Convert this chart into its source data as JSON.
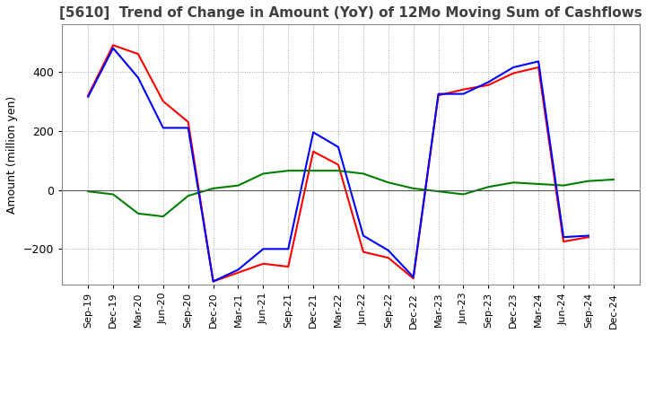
{
  "title": "[5610]  Trend of Change in Amount (YoY) of 12Mo Moving Sum of Cashflows",
  "ylabel": "Amount (million yen)",
  "x_labels": [
    "Sep-19",
    "Dec-19",
    "Mar-20",
    "Jun-20",
    "Sep-20",
    "Dec-20",
    "Mar-21",
    "Jun-21",
    "Sep-21",
    "Dec-21",
    "Mar-22",
    "Jun-22",
    "Sep-22",
    "Dec-22",
    "Mar-23",
    "Jun-23",
    "Sep-23",
    "Dec-23",
    "Mar-24",
    "Jun-24",
    "Sep-24",
    "Dec-24"
  ],
  "operating": [
    320,
    490,
    460,
    300,
    230,
    -310,
    -280,
    -250,
    -260,
    130,
    85,
    -210,
    -230,
    -300,
    320,
    340,
    355,
    395,
    415,
    -175,
    -160,
    null
  ],
  "investing": [
    -5,
    -15,
    -80,
    -90,
    -20,
    5,
    15,
    55,
    65,
    65,
    65,
    55,
    25,
    5,
    -5,
    -15,
    10,
    25,
    20,
    15,
    30,
    35
  ],
  "free": [
    315,
    480,
    380,
    210,
    210,
    -310,
    -270,
    -200,
    -200,
    195,
    145,
    -155,
    -205,
    -295,
    325,
    325,
    365,
    415,
    435,
    -160,
    -155,
    null
  ],
  "ylim": [
    -320,
    560
  ],
  "yticks": [
    -200,
    0,
    200,
    400
  ],
  "operating_color": "#ff0000",
  "investing_color": "#008000",
  "free_color": "#0000ff",
  "bg_color": "#ffffff",
  "grid_color": "#aaaaaa",
  "title_color": "#404040"
}
